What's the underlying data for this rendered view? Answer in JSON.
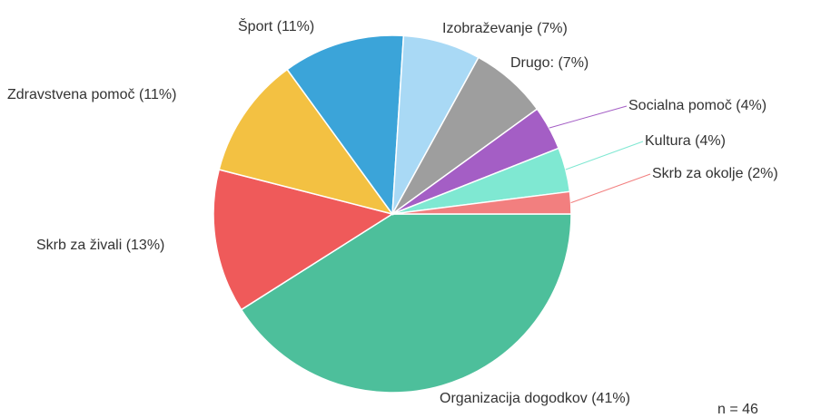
{
  "chart_data": {
    "type": "pie",
    "categories": [
      "Organizacija dogodkov (41%)",
      "Skrb za živali (13%)",
      "Zdravstvena pomoč (11%)",
      "Šport (11%)",
      "Izobraževanje (7%)",
      "Drugo: (7%)",
      "Socialna pomoč (4%)",
      "Kultura (4%)",
      "Skrb za okolje (2%)"
    ],
    "values": [
      41,
      13,
      11,
      11,
      7,
      7,
      4,
      4,
      2
    ],
    "colors": [
      "#4dbf9b",
      "#ef5a5a",
      "#f3c142",
      "#3ba4d9",
      "#a9d9f5",
      "#9e9e9e",
      "#a45ec5",
      "#7fe8d2",
      "#f27f7f"
    ],
    "annotation": "n = 46"
  }
}
